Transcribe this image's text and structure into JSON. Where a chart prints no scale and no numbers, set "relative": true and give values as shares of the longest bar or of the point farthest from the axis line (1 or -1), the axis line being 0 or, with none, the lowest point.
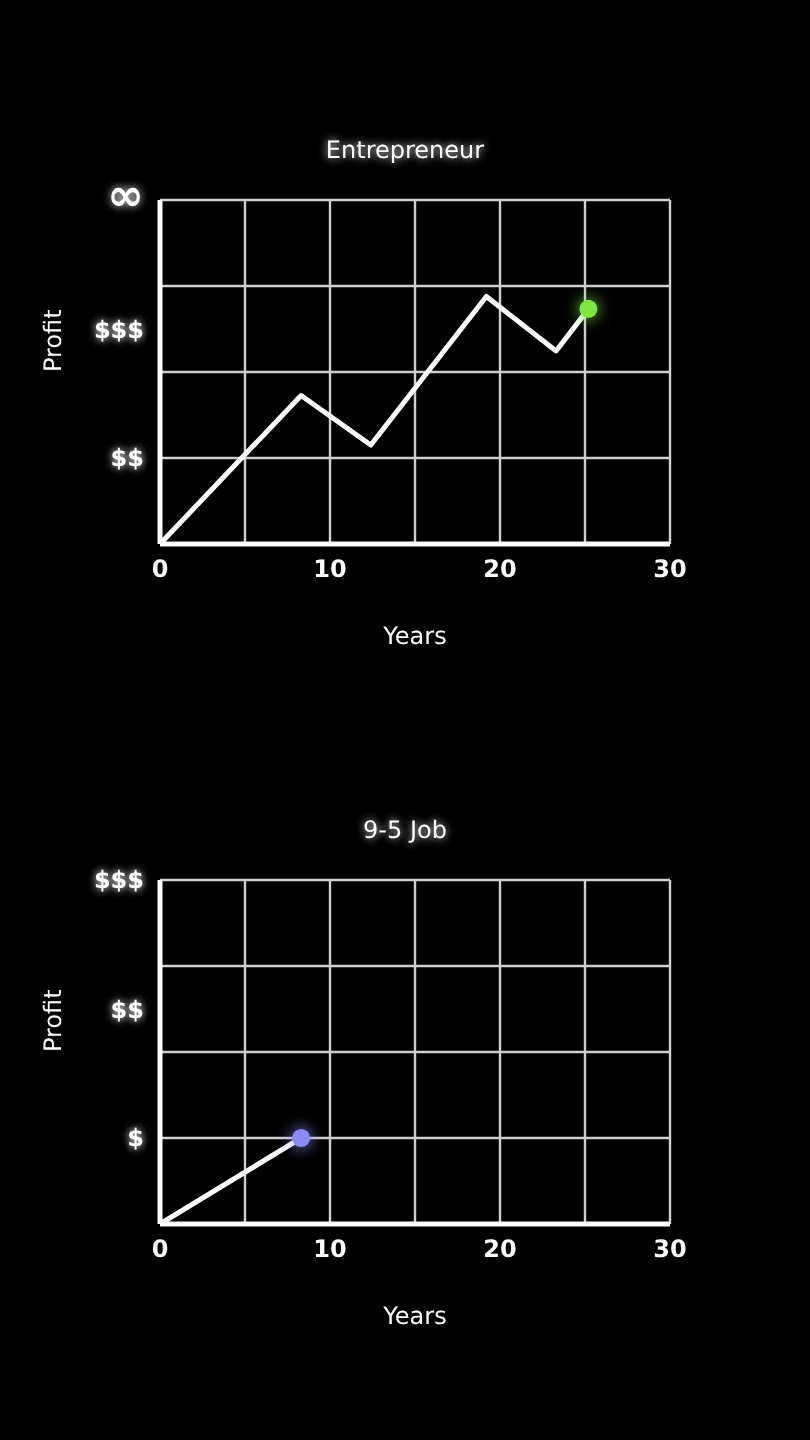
{
  "chart_data": [
    {
      "type": "line",
      "title": "Entrepreneur",
      "xlabel": "Years",
      "ylabel": "Profit",
      "relative": true,
      "annotations": [
        "∞",
        "$$$",
        "$$"
      ],
      "xlim": [
        0,
        30
      ],
      "xticks": [
        0,
        {
          "value": 5,
          "label": null
        },
        10,
        {
          "value": 15,
          "label": null
        },
        20,
        {
          "value": 25,
          "label": null
        },
        30
      ],
      "grid": true,
      "series": [
        {
          "color": "#ffffff",
          "marker": "none",
          "x": [
            0,
            8.3,
            12.4,
            19.2,
            23.3,
            25.2
          ],
          "values": [
            0,
            0.6,
            0.4,
            1,
            0.78,
            0.95
          ]
        },
        {
          "type": "scatter",
          "color": "#7ee843",
          "marker": "circle",
          "x": [
            25.2
          ],
          "values": [
            0.95
          ]
        }
      ]
    },
    {
      "type": "line",
      "title": "9-5 Job",
      "xlabel": "Years",
      "ylabel": "Profit",
      "relative": true,
      "annotations": [
        "$$$",
        "$$",
        "$"
      ],
      "xlim": [
        0,
        30
      ],
      "xticks": [
        0,
        {
          "value": 5,
          "label": null
        },
        10,
        {
          "value": 15,
          "label": null
        },
        20,
        {
          "value": 25,
          "label": null
        },
        30
      ],
      "grid": true,
      "series": [
        {
          "color": "#ffffff",
          "marker": "none",
          "x": [
            0,
            8.3
          ],
          "values": [
            0,
            1
          ]
        },
        {
          "type": "scatter",
          "color": "#8a8cf5",
          "marker": "circle",
          "x": [
            8.3
          ],
          "values": [
            1
          ]
        }
      ]
    }
  ]
}
